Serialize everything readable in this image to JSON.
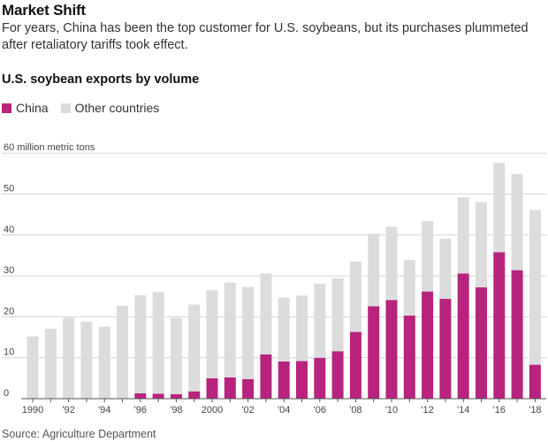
{
  "header": {
    "title": "Market Shift",
    "dek": "For years, China has been the top customer for U.S. soybeans, but its purchases plummeted after retaliatory tariffs took effect.",
    "subtitle": "U.S. soybean exports by volume"
  },
  "legend": {
    "china_label": "China",
    "other_label": "Other countries"
  },
  "colors": {
    "china": "#b8237e",
    "other": "#dcdcdc",
    "grid": "#d4d4d4",
    "axis": "#555555"
  },
  "source": "Source: Agriculture Department",
  "chart_data": {
    "type": "bar",
    "stacked": true,
    "title": "U.S. soybean exports by volume",
    "unit_label": "60 million metric tons",
    "ylim": [
      0,
      60
    ],
    "y_ticks": [
      0,
      10,
      20,
      30,
      40,
      50,
      60
    ],
    "grid": true,
    "legend_position": "top-left",
    "categories": [
      "1990",
      "1991",
      "1992",
      "1993",
      "1994",
      "1995",
      "1996",
      "1997",
      "1998",
      "1999",
      "2000",
      "2001",
      "2002",
      "2003",
      "2004",
      "2005",
      "2006",
      "2007",
      "2008",
      "2009",
      "2010",
      "2011",
      "2012",
      "2013",
      "2014",
      "2015",
      "2016",
      "2017",
      "2018"
    ],
    "x_tick_labels": [
      "1990",
      "",
      "'92",
      "",
      "'94",
      "",
      "'96",
      "",
      "'98",
      "",
      "2000",
      "",
      "'02",
      "",
      "'04",
      "",
      "'06",
      "",
      "'08",
      "",
      "'10",
      "",
      "'12",
      "",
      "'14",
      "",
      "'16",
      "",
      "'18"
    ],
    "series": [
      {
        "name": "China",
        "values": [
          0,
          0,
          0,
          0,
          0,
          0,
          1.3,
          1.2,
          1.1,
          1.8,
          5.0,
          5.2,
          4.8,
          10.8,
          9.1,
          9.2,
          10.0,
          11.6,
          16.3,
          22.6,
          24.1,
          20.3,
          26.2,
          24.4,
          30.6,
          27.2,
          35.8,
          31.4,
          8.3
        ]
      },
      {
        "name": "Other countries",
        "values": [
          15.2,
          17.1,
          19.8,
          18.8,
          17.6,
          22.7,
          24.0,
          24.9,
          18.6,
          21.2,
          21.5,
          23.2,
          22.5,
          19.8,
          15.6,
          16.0,
          18.1,
          17.8,
          17.2,
          17.7,
          17.9,
          13.6,
          17.2,
          14.7,
          18.6,
          20.8,
          21.8,
          23.5,
          37.8
        ]
      }
    ]
  }
}
